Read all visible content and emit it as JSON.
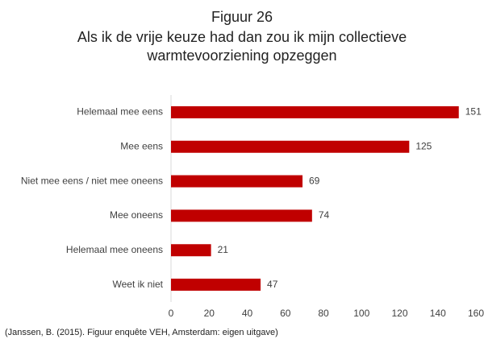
{
  "chart_data": {
    "type": "bar",
    "orientation": "horizontal",
    "title": "Figuur 26",
    "subtitle": [
      "Als ik de vrije keuze had dan zou ik mijn collectieve",
      "warmtevoorziening opzeggen"
    ],
    "categories": [
      "Helemaal mee eens",
      "Mee eens",
      "Niet mee eens / niet mee oneens",
      "Mee oneens",
      "Helemaal mee oneens",
      "Weet ik niet"
    ],
    "values": [
      151,
      125,
      69,
      74,
      21,
      47
    ],
    "color": "#c00000",
    "xlim": [
      0,
      160
    ],
    "xticks": [
      0,
      20,
      40,
      60,
      80,
      100,
      120,
      140,
      160
    ],
    "grid": false,
    "source": "(Janssen, B. (2015). Figuur enquête VEH, Amsterdam: eigen uitgave)"
  }
}
